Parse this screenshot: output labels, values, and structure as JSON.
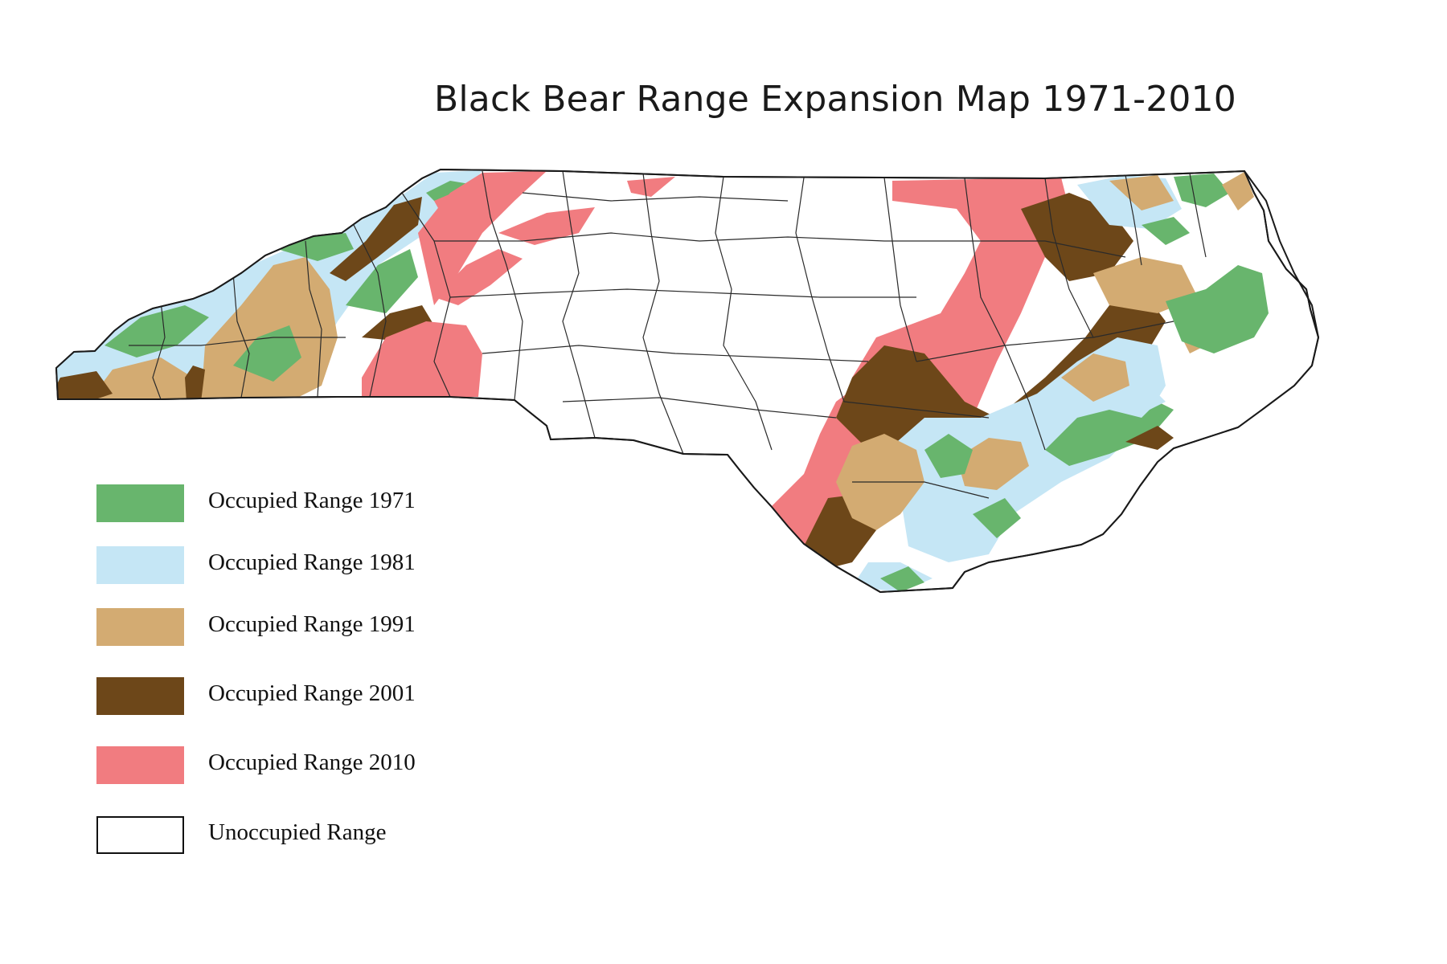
{
  "title": "Black Bear Range Expansion Map 1971-2010",
  "colors": {
    "range_1971": "#68b56d",
    "range_1981": "#c5e6f5",
    "range_1991": "#d3ab72",
    "range_2001": "#6d4719",
    "range_2010": "#f17c80",
    "unoccupied": "#ffffff",
    "county_lines": "#2a2a2a"
  },
  "legend": [
    {
      "label": "Occupied Range 1971",
      "color": "#68b56d"
    },
    {
      "label": "Occupied Range 1981",
      "color": "#c5e6f5"
    },
    {
      "label": "Occupied Range 1991",
      "color": "#d3ab72"
    },
    {
      "label": "Occupied Range 2001",
      "color": "#6d4719"
    },
    {
      "label": "Occupied Range 2010",
      "color": "#f17c80"
    },
    {
      "label": "Unoccupied Range",
      "color": "#ffffff"
    }
  ]
}
